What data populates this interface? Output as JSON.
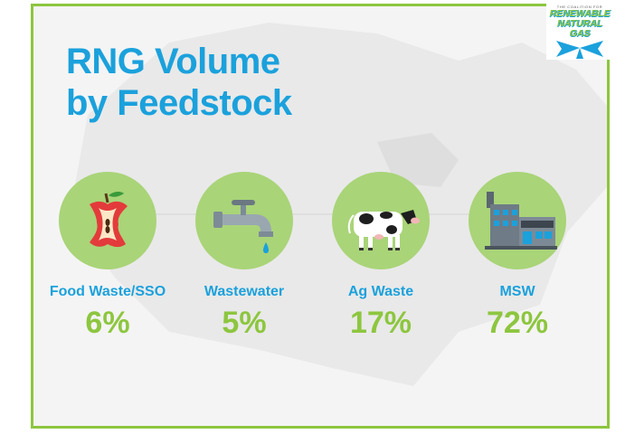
{
  "title_line1": "RNG Volume",
  "title_line2": "by Feedstock",
  "logo": {
    "small": "THE COALITION FOR",
    "line1": "RENEWABLE",
    "line2": "NATURAL GAS"
  },
  "colors": {
    "accent_blue": "#1ba1dc",
    "accent_green": "#8dc63f",
    "circle": "#a9d478"
  },
  "chart_data": {
    "type": "bar",
    "title": "RNG Volume by Feedstock",
    "categories": [
      "Food Waste/SSO",
      "Wastewater",
      "Ag Waste",
      "MSW"
    ],
    "values": [
      6,
      5,
      17,
      72
    ],
    "value_labels": [
      "6%",
      "5%",
      "17%",
      "72%"
    ],
    "icons": [
      "apple-core-icon",
      "faucet-icon",
      "cow-icon",
      "factory-icon"
    ]
  }
}
